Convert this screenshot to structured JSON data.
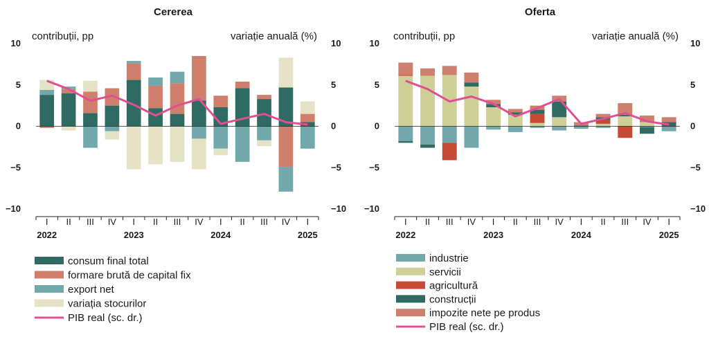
{
  "colors": {
    "consum": "#2f6b62",
    "formare": "#d07f6c",
    "export": "#72a8ac",
    "stocuri": "#e6e2c5",
    "industrie": "#72a8ac",
    "servicii": "#cfcf98",
    "agricultura": "#c64a35",
    "constructii": "#2f6b62",
    "impozite": "#d07f6c",
    "pib": "#df4f94"
  },
  "quarters": [
    "I",
    "II",
    "III",
    "IV",
    "I",
    "II",
    "III",
    "IV",
    "I",
    "II",
    "III",
    "IV",
    "I"
  ],
  "years": [
    "2022",
    "2023",
    "2024",
    "2025"
  ],
  "chart_data": [
    {
      "type": "bar",
      "stacked": true,
      "title": "Cererea",
      "ylabel_left": "contribuții, pp",
      "ylabel_right": "variație anuală (%)",
      "ylim": [
        -10,
        10
      ],
      "yticks": [
        10,
        5,
        0,
        -5,
        -10
      ],
      "categories": [
        "I 2022",
        "II 2022",
        "III 2022",
        "IV 2022",
        "I 2023",
        "II 2023",
        "III 2023",
        "IV 2023",
        "I 2024",
        "II 2024",
        "III 2024",
        "IV 2024",
        "I 2025"
      ],
      "series": [
        {
          "name": "consum final total",
          "color_key": "consum",
          "values": [
            3.8,
            4.0,
            1.6,
            2.5,
            5.6,
            2.2,
            1.5,
            3.1,
            2.3,
            4.6,
            3.3,
            4.7,
            0.5
          ]
        },
        {
          "name": "formare brută de capital fix",
          "color_key": "formare",
          "values": [
            -0.2,
            0.5,
            2.6,
            2.1,
            2.0,
            2.7,
            3.7,
            5.4,
            1.4,
            0.8,
            0.5,
            -4.9,
            1.0
          ]
        },
        {
          "name": "export net",
          "color_key": "export",
          "values": [
            0.6,
            0.3,
            -2.6,
            -0.6,
            0.3,
            1.0,
            1.4,
            -1.5,
            -2.7,
            -4.3,
            -1.7,
            -3.0,
            -2.7
          ]
        },
        {
          "name": "variația stocurilor",
          "color_key": "stocuri",
          "values": [
            1.2,
            -0.5,
            1.3,
            -1.0,
            -5.2,
            -4.6,
            -4.3,
            -3.7,
            -0.8,
            0.0,
            -0.7,
            3.6,
            1.5
          ]
        }
      ],
      "line": {
        "name": "PIB real (sc. dr.)",
        "color_key": "pib",
        "values": [
          5.5,
          4.5,
          3.1,
          3.7,
          2.6,
          1.3,
          2.5,
          3.3,
          0.3,
          0.9,
          1.5,
          0.5,
          0.2
        ]
      }
    },
    {
      "type": "bar",
      "stacked": true,
      "title": "Oferta",
      "ylabel_left": "contribuții, pp",
      "ylabel_right": "variație anuală (%)",
      "ylim": [
        -10,
        10
      ],
      "yticks": [
        10,
        5,
        0,
        -5,
        -10
      ],
      "categories": [
        "I 2022",
        "II 2022",
        "III 2022",
        "IV 2022",
        "I 2023",
        "II 2023",
        "III 2023",
        "IV 2023",
        "I 2024",
        "II 2024",
        "III 2024",
        "IV 2024",
        "I 2025"
      ],
      "series": [
        {
          "name": "industrie",
          "color_key": "industrie",
          "values": [
            -1.8,
            -2.2,
            -2.0,
            -2.6,
            -0.4,
            -0.7,
            -0.2,
            -0.5,
            -0.3,
            -0.2,
            0.0,
            -0.1,
            -0.6
          ]
        },
        {
          "name": "servicii",
          "color_key": "servicii",
          "values": [
            6.1,
            6.1,
            6.2,
            4.8,
            2.3,
            1.4,
            0.4,
            1.1,
            0.0,
            0.3,
            1.2,
            0.5,
            0.0
          ]
        },
        {
          "name": "agricultură",
          "color_key": "agricultura",
          "values": [
            0.1,
            0.0,
            -2.1,
            0.0,
            0.0,
            0.0,
            1.1,
            0.0,
            0.0,
            0.5,
            -1.4,
            0.0,
            0.0
          ]
        },
        {
          "name": "construcții",
          "color_key": "constructii",
          "values": [
            -0.2,
            -0.4,
            0.0,
            0.5,
            0.4,
            0.3,
            0.5,
            1.9,
            0.1,
            0.3,
            0.2,
            -0.8,
            0.5
          ]
        },
        {
          "name": "impozite nete pe produs",
          "color_key": "impozite",
          "values": [
            1.5,
            0.9,
            1.1,
            1.2,
            0.5,
            0.4,
            0.5,
            0.7,
            0.4,
            0.4,
            1.4,
            0.8,
            0.6
          ]
        }
      ],
      "line": {
        "name": "PIB real (sc. dr.)",
        "color_key": "pib",
        "values": [
          5.5,
          4.5,
          3.0,
          3.6,
          2.7,
          1.2,
          2.2,
          3.3,
          0.3,
          0.9,
          1.6,
          0.6,
          0.2
        ]
      }
    }
  ]
}
